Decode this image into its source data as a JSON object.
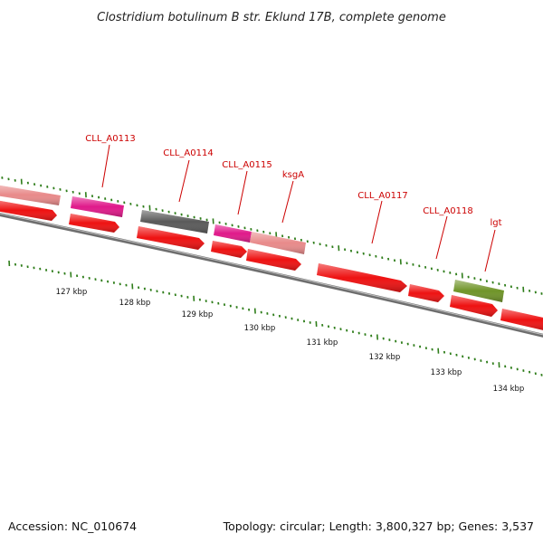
{
  "title": "Clostridium botulinum B str. Eklund 17B, complete genome",
  "footer": {
    "accession": "Accession: NC_010674",
    "summary": "Topology: circular; Length: 3,800,327 bp; Genes: 3,537"
  },
  "colors": {
    "backbone": "#6e6e6e",
    "tick_green": "#2e7d1a",
    "label_red": "#cc0000"
  },
  "gene_labels": [
    "CLL_A0113",
    "CLL_A0114",
    "CLL_A0115",
    "ksgA",
    "CLL_A0117",
    "CLL_A0118",
    "lgt"
  ],
  "kbp_labels": [
    "127 kbp",
    "128 kbp",
    "129 kbp",
    "130 kbp",
    "131 kbp",
    "132 kbp",
    "133 kbp",
    "134 kbp"
  ],
  "features": [
    {
      "name": "feature-upper-pink-1",
      "color": "#e88a8a"
    },
    {
      "name": "feature-upper-magenta-1",
      "color": "#e0198a"
    },
    {
      "name": "feature-upper-gray",
      "color": "#5a5a5a"
    },
    {
      "name": "feature-upper-magenta-2",
      "color": "#e0198a"
    },
    {
      "name": "feature-upper-pink-2",
      "color": "#e88a8a"
    },
    {
      "name": "feature-upper-olive",
      "color": "#6f9428"
    },
    {
      "name": "cds-arrow-1",
      "color": "#ee1111"
    },
    {
      "name": "cds-arrow-2",
      "color": "#ee1111"
    },
    {
      "name": "cds-arrow-3",
      "color": "#ee1111"
    },
    {
      "name": "cds-arrow-4",
      "color": "#ee1111"
    },
    {
      "name": "cds-arrow-5",
      "color": "#ee1111"
    },
    {
      "name": "cds-arrow-6",
      "color": "#ee1111"
    },
    {
      "name": "cds-arrow-7",
      "color": "#ee1111"
    },
    {
      "name": "cds-arrow-8",
      "color": "#ee1111"
    },
    {
      "name": "cds-arrow-9",
      "color": "#ee1111"
    }
  ]
}
